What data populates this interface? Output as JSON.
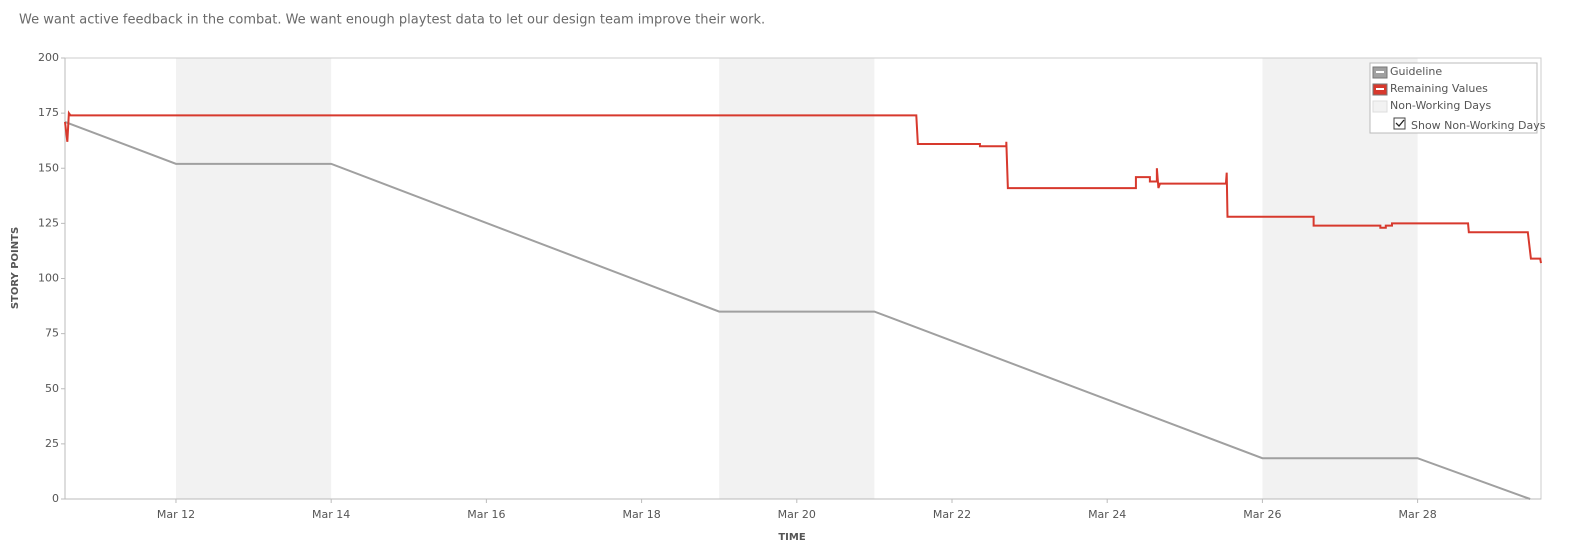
{
  "chart_data": {
    "type": "line",
    "subtitle": "We want active feedback in the combat. We want enough playtest data to let our design team improve their work.",
    "x_label": "TIME",
    "y_label": "STORY POINTS",
    "xlim": [
      10.57,
      29.59
    ],
    "xticks": [
      {
        "value": 12,
        "label": "Mar 12"
      },
      {
        "value": 14,
        "label": "Mar 14"
      },
      {
        "value": 16,
        "label": "Mar 16"
      },
      {
        "value": 18,
        "label": "Mar 18"
      },
      {
        "value": 20,
        "label": "Mar 20"
      },
      {
        "value": 22,
        "label": "Mar 22"
      },
      {
        "value": 24,
        "label": "Mar 24"
      },
      {
        "value": 26,
        "label": "Mar 26"
      },
      {
        "value": 28,
        "label": "Mar 28"
      }
    ],
    "ylim": [
      0,
      200
    ],
    "yticks": [
      0,
      25,
      50,
      75,
      100,
      125,
      150,
      175,
      200
    ],
    "grid": false,
    "legend": "upper right",
    "non_working_days": [
      [
        12,
        14
      ],
      [
        19,
        21
      ],
      [
        26,
        28
      ]
    ],
    "non_working_color": "#f2f2f2",
    "non_working_label": "Non-Working Days",
    "toggle_label": "Show Non-Working Days",
    "show_non_working_days": true,
    "series": [
      {
        "name": "Guideline",
        "color": "#a0a0a0",
        "x": [
          10.57,
          12,
          14,
          19,
          21,
          26,
          28,
          29.45
        ],
        "values": [
          171,
          152,
          152,
          85,
          85,
          18.5,
          18.5,
          0
        ]
      },
      {
        "name": "Remaining Values",
        "color": "#d7392d",
        "x": [
          10.57,
          10.6,
          10.62,
          10.64,
          21.54,
          21.56,
          22.36,
          22.36,
          22.7,
          22.7,
          22.72,
          24.37,
          24.37,
          24.55,
          24.55,
          24.64,
          24.64,
          24.66,
          24.68,
          25.53,
          25.54,
          25.55,
          26.66,
          26.66,
          27.52,
          27.52,
          27.59,
          27.59,
          27.67,
          27.67,
          28.65,
          28.66,
          29.42,
          29.46,
          29.58,
          29.59
        ],
        "values": [
          171,
          162,
          175,
          174,
          174,
          161,
          161,
          160,
          160,
          162,
          141,
          141,
          146,
          146,
          144,
          144,
          150,
          141,
          143,
          143,
          148,
          128,
          128,
          124,
          124,
          123,
          123,
          124,
          124,
          125,
          125,
          121,
          121,
          109,
          109,
          107
        ]
      }
    ]
  }
}
